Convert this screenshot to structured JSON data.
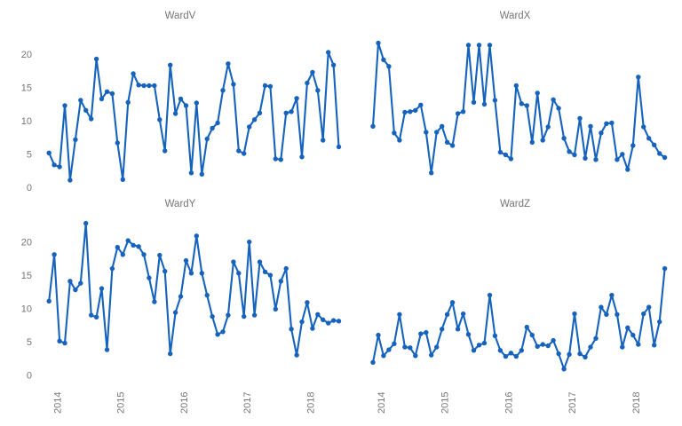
{
  "figure": {
    "background": "#ffffff",
    "layout": "2x2 grid of small-multiple line charts, shared axes, no gridlines, no axis spines"
  },
  "style": {
    "line_color": "#1663be",
    "marker_color": "#1663be",
    "title_color": "#757575",
    "tick_label_color": "#757575"
  },
  "chart_data": [
    {
      "type": "line",
      "title": "WardV",
      "position": "top-left",
      "x_start": "2013-11",
      "frequency": "monthly",
      "x_tick_labels": [
        "2014",
        "2015",
        "2016",
        "2017",
        "2018"
      ],
      "x_tick_labels_visible": false,
      "y_tick_labels": [
        "0",
        "5",
        "10",
        "15",
        "20"
      ],
      "y_ticks": [
        0,
        5,
        10,
        15,
        20
      ],
      "y_tick_labels_visible": true,
      "ylim": [
        0,
        23
      ],
      "grid": false,
      "legend": "none",
      "values": [
        5.3,
        3.5,
        3.2,
        12.4,
        1.2,
        7.3,
        13.2,
        11.7,
        10.4,
        19.4,
        13.4,
        14.5,
        14.2,
        6.8,
        1.3,
        12.9,
        17.2,
        15.5,
        15.4,
        15.4,
        15.4,
        10.3,
        5.6,
        18.5,
        11.2,
        13.4,
        12.4,
        2.3,
        12.8,
        2.1,
        7.4,
        9.0,
        9.8,
        14.7,
        18.7,
        15.6,
        5.6,
        5.2,
        9.2,
        10.3,
        11.3,
        15.4,
        15.3,
        4.4,
        4.3,
        11.3,
        11.5,
        13.5,
        4.7,
        15.8,
        17.4,
        14.7,
        7.2,
        20.4,
        18.5,
        6.2
      ]
    },
    {
      "type": "line",
      "title": "WardX",
      "position": "top-right",
      "x_start": "2013-11",
      "frequency": "monthly",
      "x_tick_labels": [
        "2014",
        "2015",
        "2016",
        "2017",
        "2018"
      ],
      "x_tick_labels_visible": false,
      "y_tick_labels": [
        "0",
        "5",
        "10",
        "15",
        "20"
      ],
      "y_ticks": [
        0,
        5,
        10,
        15,
        20
      ],
      "y_tick_labels_visible": false,
      "ylim": [
        0,
        23
      ],
      "grid": false,
      "legend": "none",
      "values": [
        9.3,
        21.8,
        19.3,
        18.3,
        8.3,
        7.2,
        11.4,
        11.5,
        11.7,
        12.5,
        8.4,
        2.3,
        8.4,
        9.3,
        6.9,
        6.4,
        11.2,
        11.5,
        21.5,
        12.9,
        21.5,
        12.6,
        21.5,
        13.2,
        5.4,
        5.0,
        4.4,
        15.4,
        12.7,
        12.4,
        6.9,
        14.3,
        7.2,
        9.2,
        13.3,
        12.0,
        7.5,
        5.5,
        5.0,
        10.5,
        4.5,
        9.3,
        4.3,
        8.3,
        9.7,
        9.8,
        4.3,
        5.1,
        2.8,
        6.4,
        16.7,
        9.2,
        7.5,
        6.5,
        5.2,
        4.6
      ]
    },
    {
      "type": "line",
      "title": "WardY",
      "position": "bottom-left",
      "x_start": "2013-11",
      "frequency": "monthly",
      "x_tick_labels": [
        "2014",
        "2015",
        "2016",
        "2017",
        "2018"
      ],
      "x_tick_labels_visible": true,
      "y_tick_labels": [
        "0",
        "5",
        "10",
        "15",
        "20"
      ],
      "y_ticks": [
        0,
        5,
        10,
        15,
        20
      ],
      "y_tick_labels_visible": true,
      "ylim": [
        0,
        23
      ],
      "grid": false,
      "legend": "none",
      "values": [
        11.2,
        18.2,
        5.2,
        4.9,
        14.2,
        12.9,
        13.9,
        22.9,
        9.1,
        8.8,
        13.1,
        3.9,
        16.1,
        19.3,
        18.2,
        20.3,
        19.6,
        19.4,
        18.2,
        14.7,
        11.1,
        18.1,
        15.7,
        3.3,
        9.5,
        11.9,
        17.3,
        15.4,
        21.0,
        15.4,
        12.1,
        8.9,
        6.2,
        6.6,
        9.1,
        17.1,
        15.4,
        8.9,
        20.1,
        9.1,
        17.1,
        15.6,
        15.1,
        10.0,
        14.2,
        16.1,
        7.0,
        3.1,
        8.1,
        11.0,
        7.1,
        9.2,
        8.4,
        7.9,
        8.3,
        8.2
      ]
    },
    {
      "type": "line",
      "title": "WardZ",
      "position": "bottom-right",
      "x_start": "2013-11",
      "frequency": "monthly",
      "x_tick_labels": [
        "2014",
        "2015",
        "2016",
        "2017",
        "2018"
      ],
      "x_tick_labels_visible": true,
      "y_tick_labels": [
        "0",
        "5",
        "10",
        "15",
        "20"
      ],
      "y_ticks": [
        0,
        5,
        10,
        15,
        20
      ],
      "y_tick_labels_visible": false,
      "ylim": [
        0,
        23
      ],
      "grid": false,
      "legend": "none",
      "values": [
        2.0,
        6.1,
        3.0,
        3.9,
        4.8,
        9.2,
        4.3,
        4.2,
        3.0,
        6.3,
        6.5,
        3.1,
        4.3,
        7.0,
        9.2,
        11.0,
        7.0,
        9.3,
        6.2,
        3.8,
        4.6,
        4.9,
        12.1,
        6.0,
        3.8,
        2.9,
        3.4,
        2.9,
        3.8,
        7.3,
        6.1,
        4.4,
        4.7,
        4.5,
        5.3,
        3.3,
        1.0,
        3.2,
        9.3,
        3.3,
        2.8,
        4.3,
        5.6,
        10.3,
        9.2,
        12.1,
        9.2,
        4.3,
        7.2,
        6.1,
        4.7,
        9.3,
        10.3,
        4.6,
        8.1,
        16.1
      ]
    }
  ]
}
